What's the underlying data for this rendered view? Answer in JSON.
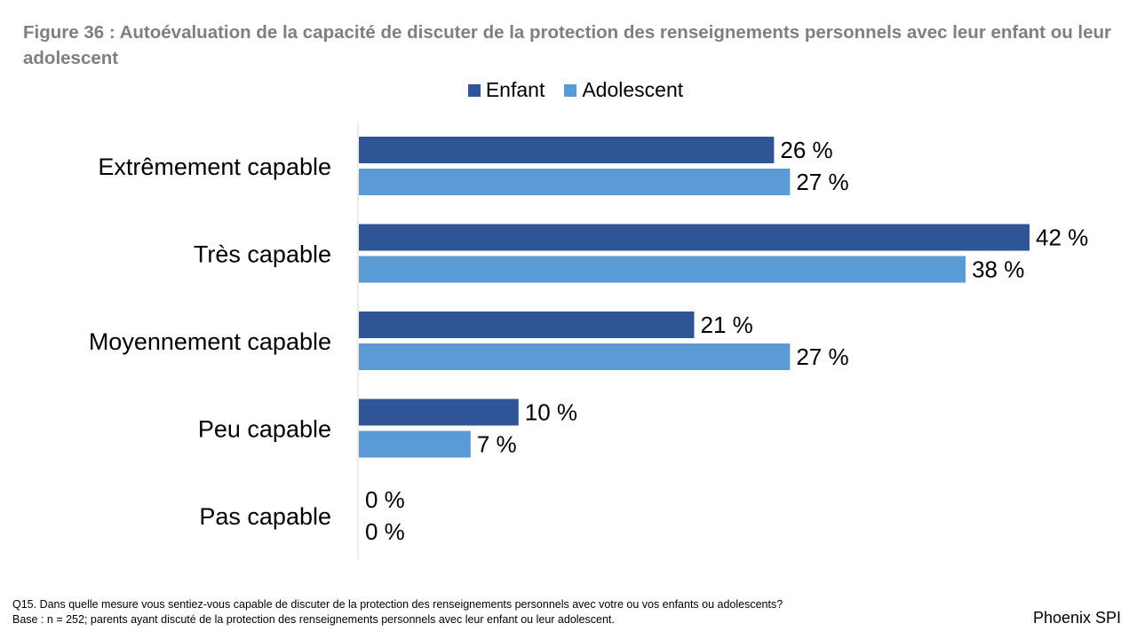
{
  "title": "Figure 36 : Autoévaluation de la capacité de discuter de la protection des renseignements personnels avec leur enfant ou leur adolescent",
  "legend": {
    "enfant": "Enfant",
    "adolescent": "Adolescent"
  },
  "colors": {
    "enfant": "#2f5597",
    "adolescent": "#5b9bd5",
    "axis": "#d9d9d9"
  },
  "chart_data": {
    "type": "bar",
    "orientation": "horizontal",
    "title": "Figure 36 : Autoévaluation de la capacité de discuter de la protection des renseignements personnels avec leur enfant ou leur adolescent",
    "categories": [
      "Extrêmement capable",
      "Très capable",
      "Moyennement capable",
      "Peu capable",
      "Pas capable"
    ],
    "series": [
      {
        "name": "Enfant",
        "values": [
          26,
          42,
          21,
          10,
          0
        ],
        "labels": [
          "26 %",
          "42 %",
          "21 %",
          "10 %",
          "0 %"
        ]
      },
      {
        "name": "Adolescent",
        "values": [
          27,
          38,
          27,
          7,
          0
        ],
        "labels": [
          "27 %",
          "38 %",
          "27 %",
          "7 %",
          "0 %"
        ]
      }
    ],
    "xlim": [
      0,
      42
    ],
    "grid": false,
    "legend_position": "top-center"
  },
  "footnote": {
    "question": "Q15. Dans quelle mesure vous sentiez-vous capable de discuter de la protection des renseignements personnels avec votre ou vos enfants ou adolescents?",
    "base": "Base : n = 252; parents ayant discuté de la protection des renseignements personnels avec leur enfant ou leur adolescent."
  },
  "brand": "Phoenix SPI"
}
